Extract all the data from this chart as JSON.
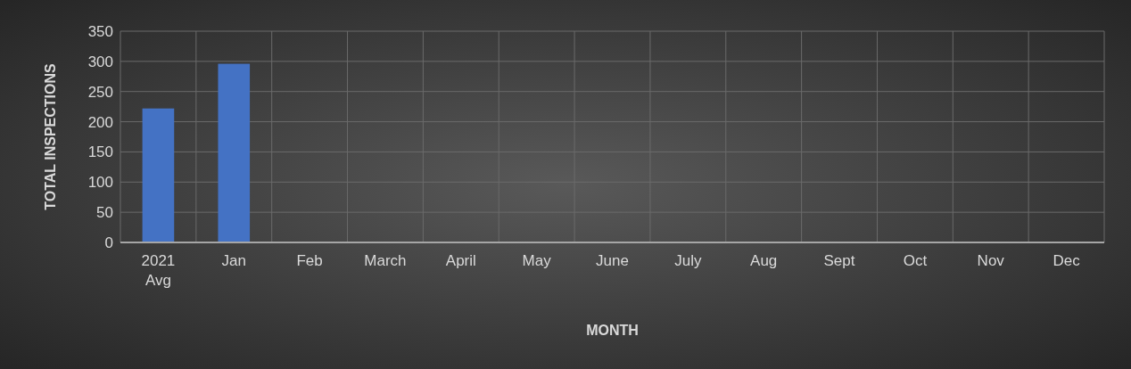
{
  "chart_data": {
    "type": "bar",
    "xlabel": "MONTH",
    "ylabel": "TOTAL INSPECTIONS",
    "categories": [
      "2021 Avg",
      "Jan",
      "Feb",
      "March",
      "April",
      "May",
      "June",
      "July",
      "Aug",
      "Sept",
      "Oct",
      "Nov",
      "Dec"
    ],
    "values": [
      222,
      296,
      null,
      null,
      null,
      null,
      null,
      null,
      null,
      null,
      null,
      null,
      null
    ],
    "color": "#4472c4",
    "ylim": [
      0,
      350
    ],
    "yticks": [
      0,
      50,
      100,
      150,
      200,
      250,
      300,
      350
    ],
    "grid": true
  }
}
